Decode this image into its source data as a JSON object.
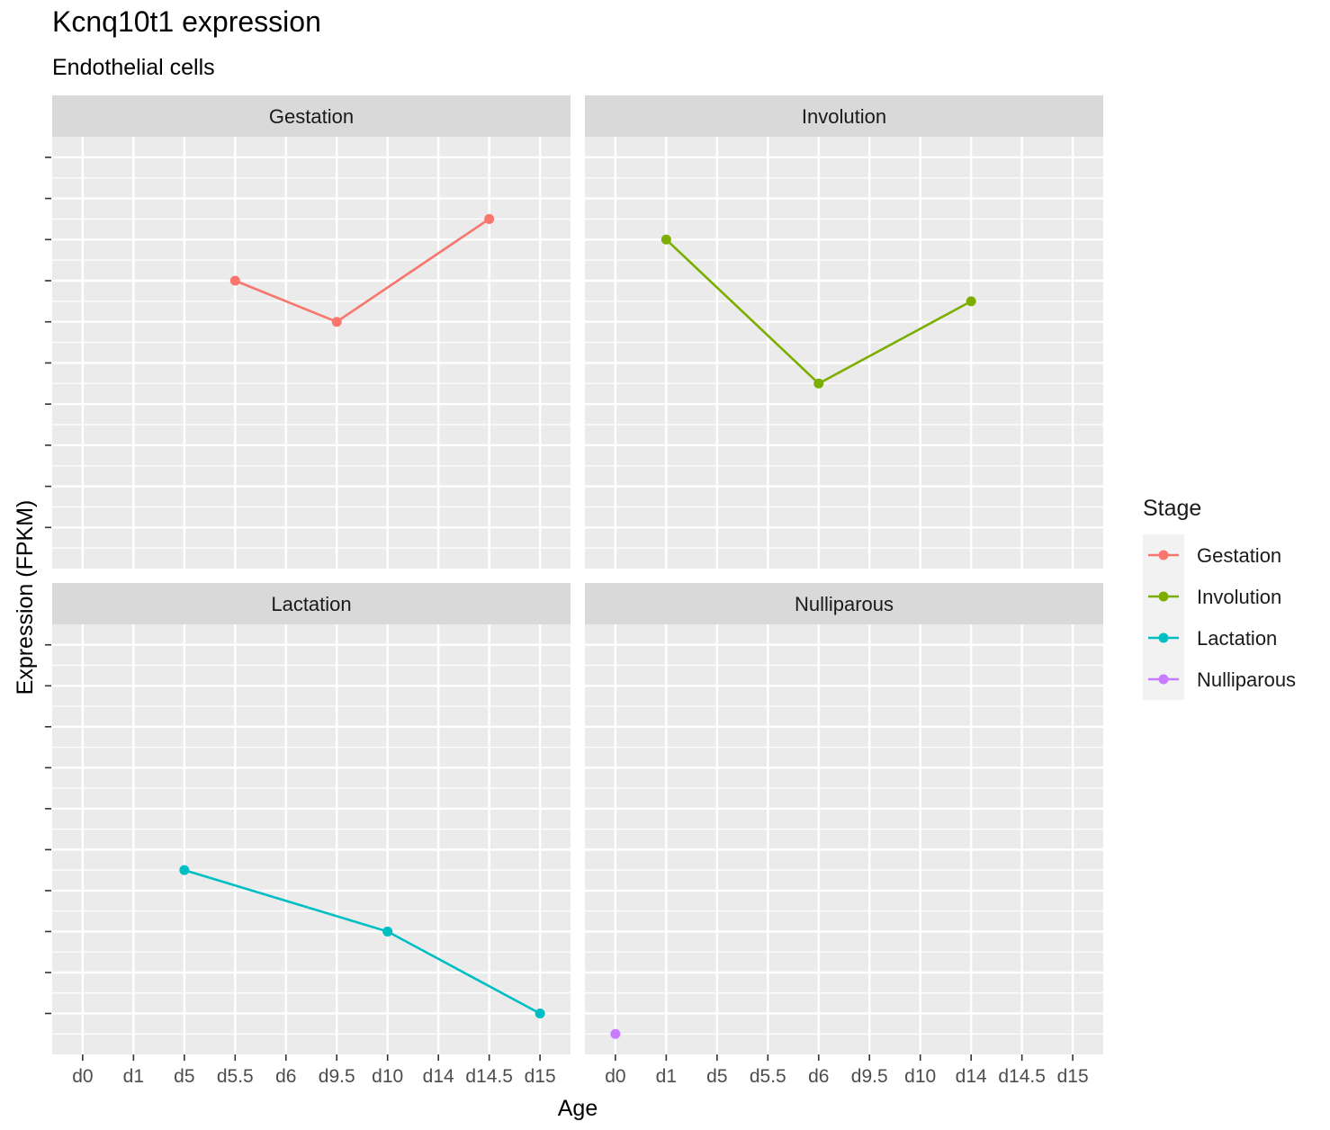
{
  "chart_data": {
    "type": "line",
    "title": "Kcnq10t1 expression",
    "subtitle": "Endothelial cells",
    "xlabel": "Age",
    "ylabel": "Expression (FPKM)",
    "categories": [
      "d0",
      "d1",
      "d5",
      "d5.5",
      "d6",
      "d9.5",
      "d10",
      "d14",
      "d14.5",
      "d15"
    ],
    "y_ticks_shown_as_labels": false,
    "ylim": [
      0,
      21
    ],
    "grid": true,
    "legend": {
      "title": "Stage",
      "placement": "right",
      "entries": [
        "Gestation",
        "Involution",
        "Lactation",
        "Nulliparous"
      ]
    },
    "colors": {
      "Gestation": "#F8766D",
      "Involution": "#7CAE00",
      "Lactation": "#00BFC4",
      "Nulliparous": "#C77CFF"
    },
    "facets": [
      {
        "label": "Gestation",
        "series": [
          {
            "name": "Gestation",
            "points": [
              [
                "d5.5",
                14
              ],
              [
                "d9.5",
                12
              ],
              [
                "d14.5",
                17
              ]
            ]
          }
        ]
      },
      {
        "label": "Involution",
        "series": [
          {
            "name": "Involution",
            "points": [
              [
                "d1",
                16
              ],
              [
                "d6",
                9
              ],
              [
                "d14",
                13
              ]
            ]
          }
        ]
      },
      {
        "label": "Lactation",
        "series": [
          {
            "name": "Lactation",
            "points": [
              [
                "d5",
                9
              ],
              [
                "d10",
                6
              ],
              [
                "d15",
                2
              ]
            ]
          }
        ]
      },
      {
        "label": "Nulliparous",
        "series": [
          {
            "name": "Nulliparous",
            "points": [
              [
                "d0",
                1
              ]
            ]
          }
        ]
      }
    ]
  }
}
